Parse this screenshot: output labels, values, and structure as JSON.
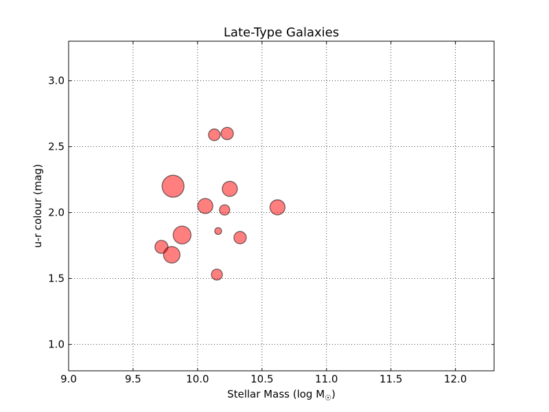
{
  "chart_data": {
    "type": "scatter",
    "title": "Late-Type Galaxies",
    "xlabel": "Stellar Mass (log M",
    "xlabel_subscript": "☉",
    "xlabel_suffix": ")",
    "ylabel": "u-r colour (mag)",
    "xlim": [
      9.0,
      12.3
    ],
    "ylim": [
      0.8,
      3.3
    ],
    "xticks": [
      9.0,
      9.5,
      10.0,
      10.5,
      11.0,
      11.5,
      12.0
    ],
    "xtick_labels": [
      "9.0",
      "9.5",
      "10.0",
      "10.5",
      "11.0",
      "11.5",
      "12.0"
    ],
    "yticks": [
      1.0,
      1.5,
      2.0,
      2.5,
      3.0
    ],
    "ytick_labels": [
      "1.0",
      "1.5",
      "2.0",
      "2.5",
      "3.0"
    ],
    "grid": true,
    "marker_color": "#ff0000",
    "marker_alpha": 0.5,
    "points": [
      {
        "x": 10.13,
        "y": 2.59,
        "size": 17
      },
      {
        "x": 10.23,
        "y": 2.6,
        "size": 18
      },
      {
        "x": 9.81,
        "y": 2.2,
        "size": 32
      },
      {
        "x": 10.25,
        "y": 2.18,
        "size": 22
      },
      {
        "x": 10.06,
        "y": 2.05,
        "size": 22
      },
      {
        "x": 10.21,
        "y": 2.02,
        "size": 15
      },
      {
        "x": 10.62,
        "y": 2.04,
        "size": 22
      },
      {
        "x": 9.88,
        "y": 1.83,
        "size": 26
      },
      {
        "x": 10.16,
        "y": 1.86,
        "size": 10
      },
      {
        "x": 10.33,
        "y": 1.81,
        "size": 18
      },
      {
        "x": 9.72,
        "y": 1.74,
        "size": 19
      },
      {
        "x": 9.8,
        "y": 1.68,
        "size": 24
      },
      {
        "x": 10.15,
        "y": 1.53,
        "size": 16
      }
    ]
  }
}
